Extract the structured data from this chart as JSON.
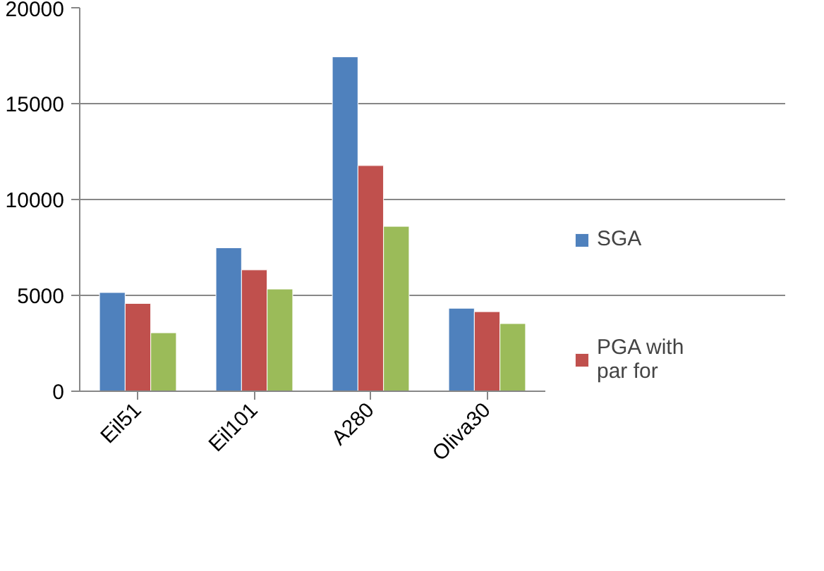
{
  "chart_data": {
    "type": "bar",
    "categories": [
      "Eil51",
      "Eil101",
      "A280",
      "Oliva30"
    ],
    "series": [
      {
        "name": "SGA",
        "color": "#4f81bd",
        "values": [
          5150,
          7480,
          17440,
          4330
        ]
      },
      {
        "name": "PGA with par for",
        "color": "#c0504d",
        "values": [
          4580,
          6330,
          11770,
          4150
        ]
      },
      {
        "color": "#9bbb59",
        "values": [
          3050,
          5330,
          8600,
          3530
        ]
      }
    ],
    "ylim": [
      0,
      20000
    ],
    "yticks": [
      0,
      5000,
      10000,
      15000,
      20000
    ],
    "grid": "y",
    "legend": "right"
  }
}
